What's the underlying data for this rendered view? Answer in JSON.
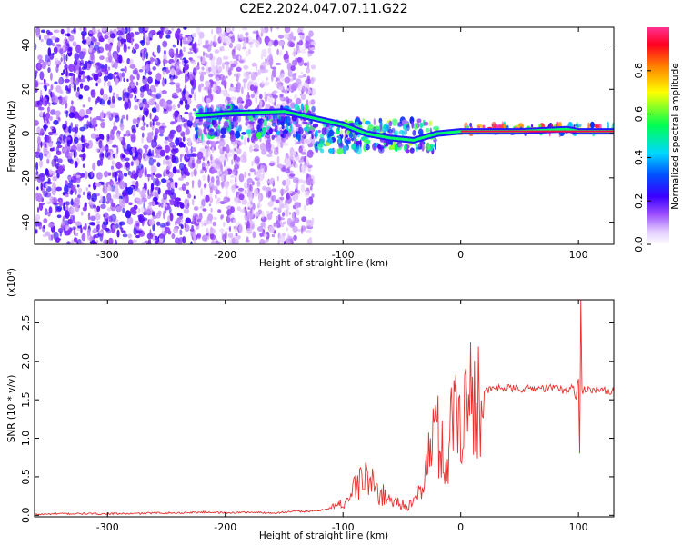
{
  "title": "C2E2.2024.047.07.11.G22",
  "chart_data": [
    {
      "type": "heatmap",
      "xlabel": "Height of straight line (km)",
      "ylabel": "Frequency (Hz)",
      "xlim": [
        -362,
        130
      ],
      "ylim": [
        -50,
        48
      ],
      "x_ticks": [
        -300,
        -200,
        -100,
        0,
        100
      ],
      "x_tick_labels": [
        "-300",
        "-200",
        "-100",
        "0",
        "100"
      ],
      "y_ticks": [
        -40,
        -20,
        0,
        20,
        40
      ],
      "y_tick_labels": [
        "-40",
        "-20",
        "0",
        "20",
        "40"
      ],
      "grid": false,
      "colorbar": {
        "label": "Normalized spectral amplitude",
        "range": [
          0,
          1
        ],
        "ticks": [
          0.0,
          0.2,
          0.4,
          0.6,
          0.8
        ],
        "tick_labels": [
          "0.0",
          "0.2",
          "0.4",
          "0.6",
          "0.8"
        ],
        "colormap": [
          "#ffffff",
          "#d9b3ff",
          "#8f3cff",
          "#4a00ff",
          "#0033ff",
          "#00c8ff",
          "#00ff66",
          "#ffff00",
          "#ff8800",
          "#ff0033",
          "#ff33aa"
        ]
      },
      "regions": [
        {
          "x_range": [
            -362,
            -225
          ],
          "freq_range": [
            -50,
            48
          ],
          "level": 0.25
        },
        {
          "x_range": [
            -225,
            -125
          ],
          "freq_range": [
            -50,
            48
          ],
          "level": 0.15
        },
        {
          "x_range": [
            -225,
            -125
          ],
          "freq_range": [
            -2,
            12
          ],
          "level": 0.45
        },
        {
          "x_range": [
            -125,
            -20
          ],
          "freq_range": [
            -8,
            6
          ],
          "level": 0.5
        },
        {
          "x_range": [
            0,
            130
          ],
          "freq_range": [
            0,
            4
          ],
          "level": 0.85
        }
      ],
      "ridge": {
        "x": [
          -225,
          -200,
          -150,
          -125,
          -100,
          -80,
          -60,
          -40,
          -20,
          0,
          50,
          90,
          100,
          130
        ],
        "freq": [
          8,
          9,
          10,
          7,
          4,
          0,
          -2,
          -3,
          0,
          1,
          1,
          2,
          1,
          1
        ]
      }
    },
    {
      "type": "line",
      "xlabel": "Height of straight line (km)",
      "ylabel": "SNR (10 * v/v)",
      "y_scale_label": "(x10⁴)",
      "xlim": [
        -362,
        130
      ],
      "ylim": [
        -0.02,
        2.8
      ],
      "x_ticks": [
        -300,
        -200,
        -100,
        0,
        100
      ],
      "x_tick_labels": [
        "-300",
        "-200",
        "-100",
        "0",
        "100"
      ],
      "y_ticks": [
        0.0,
        0.5,
        1.0,
        1.5,
        2.0,
        2.5
      ],
      "y_tick_labels": [
        "0.0",
        "0.5",
        "1.0",
        "1.5",
        "2.0",
        "2.5"
      ],
      "grid": false,
      "series": [
        {
          "color": "#e8312f",
          "x": [
            -362,
            -340,
            -320,
            -300,
            -280,
            -260,
            -240,
            -220,
            -210,
            -200,
            -180,
            -160,
            -140,
            -130,
            -120,
            -110,
            -100,
            -95,
            -90,
            -85,
            -80,
            -75,
            -70,
            -65,
            -60,
            -55,
            -50,
            -45,
            -40,
            -35,
            -30,
            -28,
            -25,
            -22,
            -20,
            -18,
            -15,
            -12,
            -10,
            -8,
            -5,
            0,
            5,
            10,
            15,
            20,
            25,
            30,
            40,
            50,
            60,
            70,
            80,
            85,
            90,
            95,
            98,
            100,
            101,
            102,
            103,
            105,
            110,
            120,
            130
          ],
          "y": [
            0.01,
            0.02,
            0.02,
            0.02,
            0.02,
            0.03,
            0.03,
            0.04,
            0.04,
            0.03,
            0.04,
            0.03,
            0.05,
            0.05,
            0.06,
            0.1,
            0.15,
            0.25,
            0.35,
            0.45,
            0.5,
            0.4,
            0.3,
            0.25,
            0.2,
            0.18,
            0.15,
            0.12,
            0.15,
            0.3,
            0.55,
            0.7,
            0.9,
            1.2,
            1.1,
            0.9,
            0.8,
            0.6,
            0.85,
            1.2,
            1.5,
            1.3,
            1.45,
            1.55,
            1.62,
            1.6,
            1.63,
            1.65,
            1.65,
            1.64,
            1.65,
            1.65,
            1.66,
            1.64,
            1.6,
            1.7,
            1.5,
            1.8,
            0.8,
            2.75,
            1.6,
            1.65,
            1.64,
            1.62,
            1.61
          ]
        }
      ]
    }
  ]
}
